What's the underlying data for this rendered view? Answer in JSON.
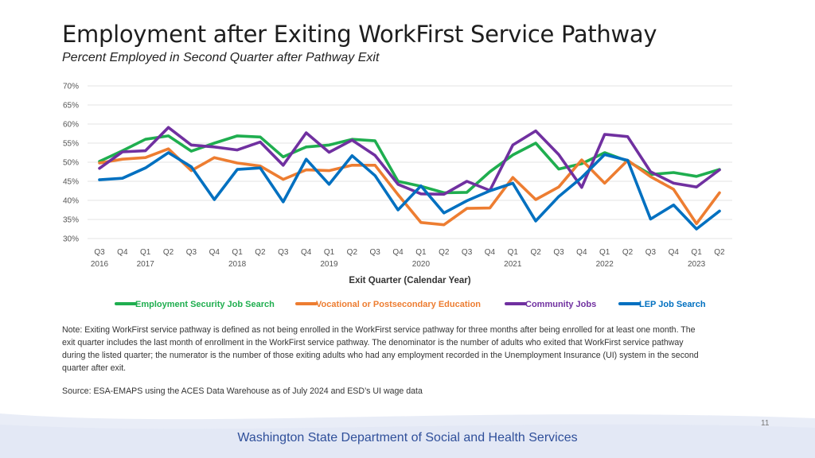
{
  "header": {
    "title": "Employment after Exiting WorkFirst Service Pathway",
    "subtitle": "Percent Employed in Second Quarter after Pathway Exit"
  },
  "chart_data": {
    "type": "line",
    "title": "Employment after Exiting WorkFirst Service Pathway",
    "subtitle": "Percent Employed in Second Quarter after Pathway Exit",
    "xlabel": "Exit Quarter (Calendar Year)",
    "ylabel": "",
    "ylim": [
      30,
      70
    ],
    "yticks": [
      "70%",
      "65%",
      "60%",
      "55%",
      "50%",
      "45%",
      "40%",
      "35%",
      "30%"
    ],
    "ytick_values": [
      70,
      65,
      60,
      55,
      50,
      45,
      40,
      35,
      30
    ],
    "grid": true,
    "legend_position": "bottom",
    "categories": [
      "Q3",
      "Q4",
      "Q1",
      "Q2",
      "Q3",
      "Q4",
      "Q1",
      "Q2",
      "Q3",
      "Q4",
      "Q1",
      "Q2",
      "Q3",
      "Q4",
      "Q1",
      "Q2",
      "Q3",
      "Q4",
      "Q1",
      "Q2",
      "Q3",
      "Q4",
      "Q1",
      "Q2",
      "Q3",
      "Q4",
      "Q1",
      "Q2"
    ],
    "years": [
      {
        "label": "2016",
        "index": 0
      },
      {
        "label": "2017",
        "index": 2
      },
      {
        "label": "2018",
        "index": 6
      },
      {
        "label": "2019",
        "index": 10
      },
      {
        "label": "2020",
        "index": 14
      },
      {
        "label": "2021",
        "index": 18
      },
      {
        "label": "2022",
        "index": 22
      },
      {
        "label": "2023",
        "index": 26
      }
    ],
    "series": [
      {
        "name": "Employment Security Job Search",
        "color": "#1fae4f",
        "values": [
          50.2,
          53.0,
          56.0,
          56.9,
          52.9,
          55.0,
          56.9,
          56.6,
          51.4,
          54.0,
          54.5,
          56.0,
          55.6,
          45.0,
          43.7,
          42.0,
          42.1,
          47.5,
          51.9,
          55.0,
          48.2,
          49.6,
          52.5,
          50.3,
          46.8,
          47.3,
          46.3,
          48.1
        ]
      },
      {
        "name": "Vocational or Postsecondary Education",
        "color": "#ed7d31",
        "values": [
          49.8,
          50.8,
          51.2,
          53.5,
          47.8,
          51.2,
          49.8,
          49.0,
          45.5,
          48.0,
          47.8,
          49.2,
          49.2,
          41.5,
          34.2,
          33.6,
          37.9,
          38.0,
          46.0,
          40.2,
          43.5,
          50.6,
          44.5,
          50.5,
          46.2,
          42.9,
          33.9,
          42.0
        ]
      },
      {
        "name": "Community Jobs",
        "color": "#7030a0",
        "values": [
          48.4,
          52.7,
          53.0,
          59.1,
          54.5,
          54.0,
          53.2,
          55.3,
          49.2,
          57.7,
          52.6,
          55.8,
          51.8,
          44.2,
          41.7,
          41.6,
          45.0,
          42.6,
          54.5,
          58.2,
          52.0,
          43.4,
          57.3,
          56.7,
          47.5,
          44.5,
          43.5,
          48.0
        ]
      },
      {
        "name": "LEP Job Search",
        "color": "#0070c0",
        "values": [
          45.4,
          45.8,
          48.5,
          52.5,
          48.8,
          40.2,
          48.1,
          48.5,
          39.6,
          50.8,
          44.2,
          51.7,
          46.5,
          37.5,
          43.8,
          36.7,
          39.9,
          42.5,
          44.5,
          34.6,
          41.0,
          46.0,
          52.0,
          50.5,
          35.1,
          38.8,
          32.5,
          37.2
        ]
      }
    ]
  },
  "note": "Note: Exiting WorkFirst service pathway is defined as not being enrolled in the WorkFirst service pathway for three months after being enrolled for at least one month. The exit quarter includes the last month of enrollment in the WorkFirst service pathway. The denominator is the number of adults who exited that WorkFirst service pathway during the listed quarter; the numerator is the number of those exiting adults who had any employment recorded in the Unemployment Insurance (UI) system in the second quarter after exit.",
  "source": "Source: ESA-EMAPS using the ACES Data Warehouse as of July 2024 and ESD’s UI wage data",
  "footer": {
    "page_number": "11",
    "organization": "Washington State Department of Social and Health Services"
  }
}
